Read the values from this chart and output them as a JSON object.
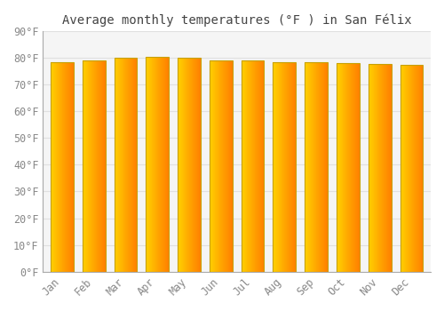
{
  "title": "Average monthly temperatures (°F ) in San Félix",
  "months": [
    "Jan",
    "Feb",
    "Mar",
    "Apr",
    "May",
    "Jun",
    "Jul",
    "Aug",
    "Sep",
    "Oct",
    "Nov",
    "Dec"
  ],
  "values": [
    78.3,
    79.0,
    80.1,
    80.4,
    80.1,
    79.0,
    79.0,
    78.4,
    78.3,
    78.1,
    77.5,
    77.4
  ],
  "bar_color_left": "#FFD000",
  "bar_color_mid": "#FFA500",
  "bar_color_right": "#F08000",
  "background_color": "#FFFFFF",
  "plot_bg_color": "#F5F5F5",
  "grid_color": "#E0E0E0",
  "text_color": "#888888",
  "border_color": "#C8A000",
  "ylim": [
    0,
    90
  ],
  "yticks": [
    0,
    10,
    20,
    30,
    40,
    50,
    60,
    70,
    80,
    90
  ],
  "title_fontsize": 10,
  "tick_fontsize": 8.5,
  "bar_width": 0.72
}
